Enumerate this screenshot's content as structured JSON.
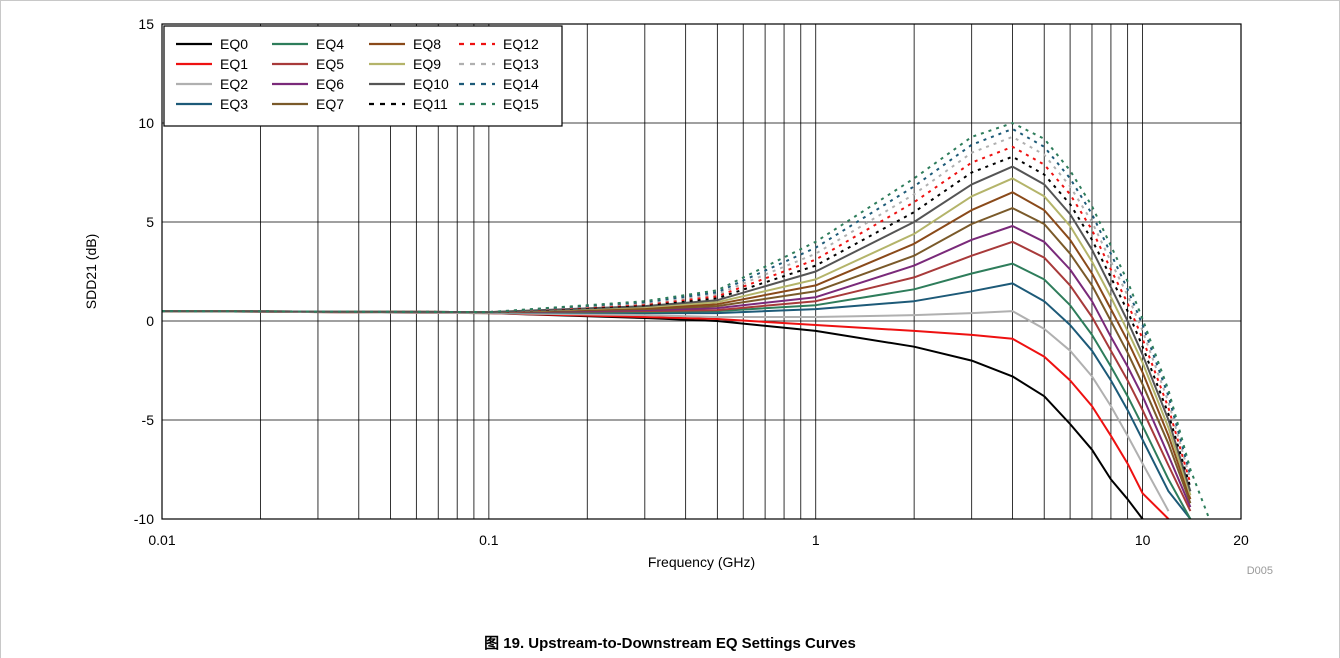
{
  "caption": "图 19. Upstream-to-Downstream EQ Settings Curves",
  "figure_code": "D005",
  "chart_data": {
    "type": "line",
    "title": "",
    "xlabel": "Frequency (GHz)",
    "ylabel": "SDD21 (dB)",
    "xscale": "log",
    "xlim": [
      0.01,
      20
    ],
    "ylim": [
      -10,
      15
    ],
    "x_ticks": [
      "0.01",
      "0.1",
      "1",
      "10",
      "20"
    ],
    "y_ticks": [
      "15",
      "10",
      "5",
      "0",
      "-5",
      "-10"
    ],
    "grid": true,
    "legend_position": "top-left",
    "x": [
      0.01,
      0.1,
      0.3,
      0.5,
      1,
      2,
      3,
      4,
      5,
      6,
      7,
      8,
      9,
      10,
      12,
      14,
      16
    ],
    "series": [
      {
        "name": "EQ0",
        "color": "#000000",
        "dash": "solid",
        "values": [
          0.5,
          0.4,
          0.15,
          0.0,
          -0.5,
          -1.3,
          -2.0,
          -2.8,
          -3.8,
          -5.2,
          -6.5,
          -8.0,
          -9.0,
          -10.0,
          null,
          null,
          null
        ]
      },
      {
        "name": "EQ1",
        "color": "#ee1111",
        "dash": "solid",
        "values": [
          0.5,
          0.4,
          0.2,
          0.1,
          -0.2,
          -0.5,
          -0.7,
          -0.9,
          -1.8,
          -3.0,
          -4.3,
          -5.8,
          -7.2,
          -8.7,
          -10.0,
          null,
          null
        ]
      },
      {
        "name": "EQ2",
        "color": "#b0b0b0",
        "dash": "solid",
        "values": [
          0.5,
          0.4,
          0.3,
          0.2,
          0.2,
          0.3,
          0.4,
          0.5,
          -0.4,
          -1.5,
          -2.8,
          -4.3,
          -5.8,
          -7.2,
          -9.6,
          null,
          null
        ]
      },
      {
        "name": "EQ3",
        "color": "#1d5a78",
        "dash": "solid",
        "values": [
          0.5,
          0.45,
          0.4,
          0.4,
          0.6,
          1.0,
          1.5,
          1.9,
          1.0,
          -0.2,
          -1.5,
          -3.0,
          -4.5,
          -6.0,
          -8.6,
          -10.0,
          null
        ]
      },
      {
        "name": "EQ4",
        "color": "#2e7d5b",
        "dash": "solid",
        "values": [
          0.5,
          0.45,
          0.45,
          0.5,
          0.8,
          1.6,
          2.4,
          2.9,
          2.1,
          0.8,
          -0.7,
          -2.3,
          -3.8,
          -5.3,
          -8.0,
          -10.0,
          null
        ]
      },
      {
        "name": "EQ5",
        "color": "#a83a3a",
        "dash": "solid",
        "values": [
          0.5,
          0.45,
          0.5,
          0.55,
          1.0,
          2.2,
          3.3,
          4.0,
          3.2,
          1.8,
          0.2,
          -1.5,
          -3.0,
          -4.5,
          -7.3,
          -9.6,
          null
        ]
      },
      {
        "name": "EQ6",
        "color": "#7a2a7a",
        "dash": "solid",
        "values": [
          0.5,
          0.45,
          0.55,
          0.65,
          1.2,
          2.8,
          4.1,
          4.8,
          4.0,
          2.6,
          1.0,
          -0.8,
          -2.3,
          -3.8,
          -6.8,
          -9.4,
          null
        ]
      },
      {
        "name": "EQ7",
        "color": "#7a5a2a",
        "dash": "solid",
        "values": [
          0.5,
          0.45,
          0.6,
          0.75,
          1.5,
          3.3,
          4.9,
          5.7,
          4.9,
          3.4,
          1.8,
          0.0,
          -1.6,
          -3.2,
          -6.2,
          -9.2,
          null
        ]
      },
      {
        "name": "EQ8",
        "color": "#8a4a1a",
        "dash": "solid",
        "values": [
          0.5,
          0.45,
          0.65,
          0.85,
          1.8,
          3.9,
          5.6,
          6.5,
          5.6,
          4.1,
          2.4,
          0.6,
          -1.0,
          -2.6,
          -5.8,
          -9.0,
          null
        ]
      },
      {
        "name": "EQ9",
        "color": "#b4b46a",
        "dash": "solid",
        "values": [
          0.5,
          0.45,
          0.7,
          0.95,
          2.1,
          4.4,
          6.3,
          7.2,
          6.3,
          4.8,
          3.0,
          1.2,
          -0.5,
          -2.1,
          -5.4,
          -8.8,
          null
        ]
      },
      {
        "name": "EQ10",
        "color": "#555555",
        "dash": "solid",
        "values": [
          0.5,
          0.45,
          0.75,
          1.05,
          2.5,
          5.0,
          6.9,
          7.8,
          6.9,
          5.4,
          3.6,
          1.7,
          0.0,
          -1.7,
          -5.0,
          -8.6,
          null
        ]
      },
      {
        "name": "EQ11",
        "color": "#000000",
        "dash": "dashed",
        "values": [
          0.5,
          0.45,
          0.8,
          1.15,
          2.8,
          5.5,
          7.5,
          8.3,
          7.4,
          5.9,
          4.1,
          2.2,
          0.5,
          -1.3,
          -4.7,
          -8.4,
          null
        ]
      },
      {
        "name": "EQ12",
        "color": "#ee1111",
        "dash": "dashed",
        "values": [
          0.5,
          0.45,
          0.85,
          1.25,
          3.1,
          6.0,
          8.0,
          8.8,
          7.9,
          6.4,
          4.6,
          2.6,
          0.9,
          -0.9,
          -4.4,
          -8.2,
          null
        ]
      },
      {
        "name": "EQ13",
        "color": "#b0b0b0",
        "dash": "dashed",
        "values": [
          0.5,
          0.45,
          0.9,
          1.35,
          3.4,
          6.4,
          8.5,
          9.3,
          8.4,
          6.8,
          5.0,
          3.0,
          1.3,
          -0.5,
          -4.1,
          -8.0,
          null
        ]
      },
      {
        "name": "EQ14",
        "color": "#1d5a78",
        "dash": "dashed",
        "values": [
          0.5,
          0.45,
          0.95,
          1.45,
          3.7,
          6.8,
          8.9,
          9.7,
          8.8,
          7.2,
          5.4,
          3.4,
          1.6,
          -0.2,
          -3.8,
          -7.8,
          null
        ]
      },
      {
        "name": "EQ15",
        "color": "#2e7d5b",
        "dash": "dashed",
        "values": [
          0.5,
          0.45,
          1.0,
          1.55,
          4.0,
          7.2,
          9.3,
          10.0,
          9.2,
          7.6,
          5.8,
          3.8,
          2.0,
          0.1,
          -3.5,
          -7.5,
          -10.0
        ]
      }
    ]
  }
}
